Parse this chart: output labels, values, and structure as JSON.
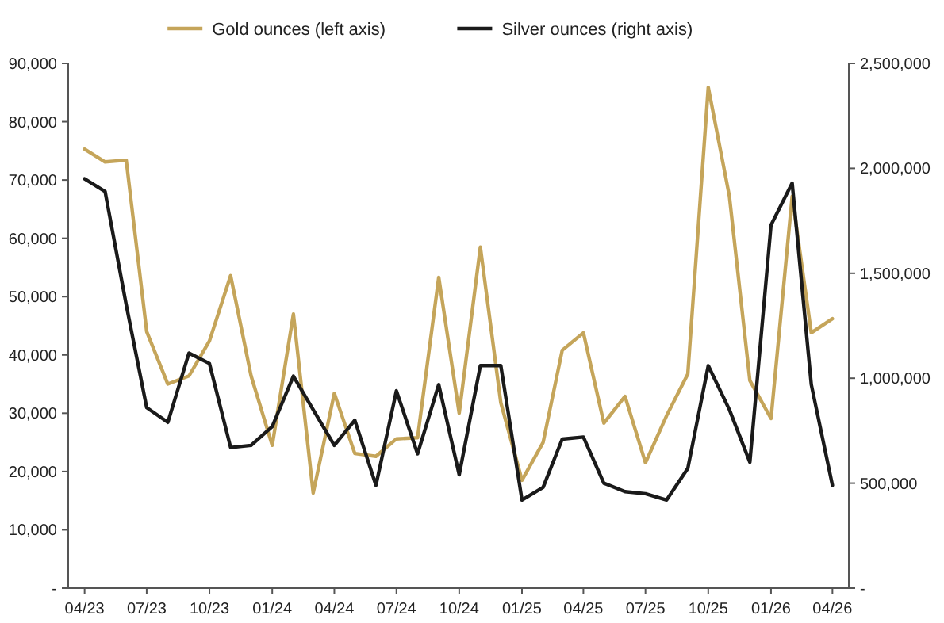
{
  "chart_data": {
    "type": "line",
    "x": [
      "2023-04",
      "2023-05",
      "2023-06",
      "2023-07",
      "2023-08",
      "2023-09",
      "2023-10",
      "2023-11",
      "2023-12",
      "2024-01",
      "2024-02",
      "2024-03",
      "2024-04",
      "2024-05",
      "2024-06",
      "2024-07",
      "2024-08",
      "2024-09",
      "2024-10",
      "2024-11",
      "2024-12",
      "2025-01",
      "2025-02",
      "2025-03",
      "2025-04",
      "2025-05",
      "2025-06",
      "2025-07",
      "2025-08",
      "2025-09",
      "2025-10",
      "2025-11",
      "2025-12",
      "2026-01",
      "2026-02",
      "2026-03",
      "2026-04"
    ],
    "series": [
      {
        "name": "Gold ounces (left axis)",
        "color": "#c5a55a",
        "values": [
          75300,
          73100,
          73400,
          44000,
          35000,
          36400,
          42400,
          53600,
          36400,
          24500,
          47000,
          16300,
          33400,
          23100,
          22600,
          25600,
          25800,
          53300,
          30000,
          58500,
          31800,
          18500,
          25000,
          40800,
          43800,
          28300,
          32900,
          21500,
          29600,
          36700,
          85900,
          67200,
          35600,
          29100,
          67200,
          43800,
          46200
        ]
      },
      {
        "name": "Silver ounces (right axis)",
        "color": "#1a1a1a",
        "axis": "y2",
        "values": [
          1950000,
          1890000,
          1350000,
          860000,
          790000,
          1120000,
          1070000,
          670000,
          680000,
          770000,
          1010000,
          850000,
          680000,
          800000,
          490000,
          940000,
          640000,
          970000,
          540000,
          1060000,
          1060000,
          420000,
          480000,
          710000,
          720000,
          500000,
          460000,
          450000,
          420000,
          570000,
          1060000,
          850000,
          600000,
          1730000,
          1930000,
          970000,
          490000
        ]
      }
    ],
    "xlim": [
      "2023-03-08",
      "2026-04-25"
    ],
    "xticks": [
      {
        "value": "2023-04",
        "label": "04/23"
      },
      {
        "value": "2023-07",
        "label": "07/23"
      },
      {
        "value": "2023-10",
        "label": "10/23"
      },
      {
        "value": "2024-01",
        "label": "01/24"
      },
      {
        "value": "2024-04",
        "label": "04/24"
      },
      {
        "value": "2024-07",
        "label": "07/24"
      },
      {
        "value": "2024-10",
        "label": "10/24"
      },
      {
        "value": "2025-01",
        "label": "01/25"
      },
      {
        "value": "2025-04",
        "label": "04/25"
      },
      {
        "value": "2025-07",
        "label": "07/25"
      },
      {
        "value": "2025-10",
        "label": "10/25"
      },
      {
        "value": "2026-01",
        "label": "01/26"
      },
      {
        "value": "2026-04",
        "label": "04/26"
      }
    ],
    "ylim": [
      0,
      90000
    ],
    "yticks": [
      {
        "value": 0,
        "label": "-"
      },
      {
        "value": 10000,
        "label": "10,000"
      },
      {
        "value": 20000,
        "label": "20,000"
      },
      {
        "value": 30000,
        "label": "30,000"
      },
      {
        "value": 40000,
        "label": "40,000"
      },
      {
        "value": 50000,
        "label": "50,000"
      },
      {
        "value": 60000,
        "label": "60,000"
      },
      {
        "value": 70000,
        "label": "70,000"
      },
      {
        "value": 80000,
        "label": "80,000"
      },
      {
        "value": 90000,
        "label": "90,000"
      }
    ],
    "y2lim": [
      0,
      2500000
    ],
    "y2ticks": [
      {
        "value": 0,
        "label": "-"
      },
      {
        "value": 500000,
        "label": "500,000"
      },
      {
        "value": 1000000,
        "label": "1,000,000"
      },
      {
        "value": 1500000,
        "label": "1,500,000"
      },
      {
        "value": 2000000,
        "label": "2,000,000"
      },
      {
        "value": 2500000,
        "label": "2,500,000"
      }
    ],
    "legend": "top",
    "grid": false,
    "marker": "none",
    "line_style": "solid"
  }
}
